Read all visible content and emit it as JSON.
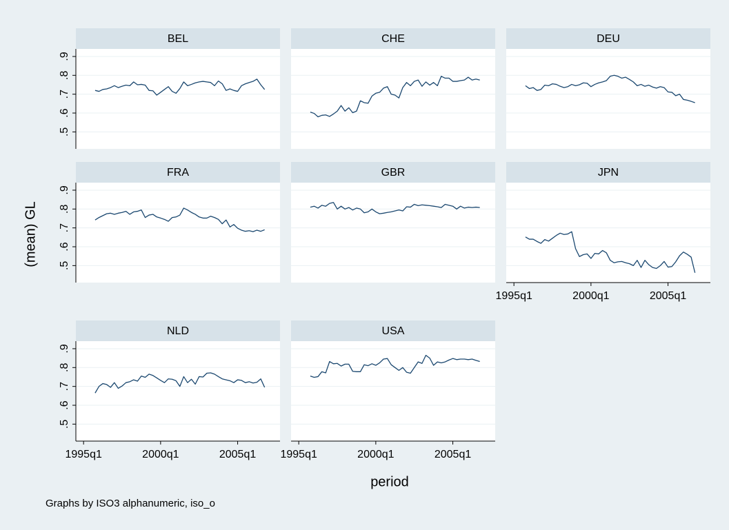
{
  "chart_data": {
    "type": "line",
    "y_label": "(mean) GL",
    "x_label": "period",
    "note": "Graphs by ISO3 alphanumeric, iso_o",
    "x": [
      "1995q4",
      "1996q1",
      "1996q2",
      "1996q3",
      "1996q4",
      "1997q1",
      "1997q2",
      "1997q3",
      "1997q4",
      "1998q1",
      "1998q2",
      "1998q3",
      "1998q4",
      "1999q1",
      "1999q2",
      "1999q3",
      "1999q4",
      "2000q1",
      "2000q2",
      "2000q3",
      "2000q4",
      "2001q1",
      "2001q2",
      "2001q3",
      "2001q4",
      "2002q1",
      "2002q2",
      "2002q3",
      "2002q4",
      "2003q1",
      "2003q2",
      "2003q3",
      "2003q4",
      "2004q1",
      "2004q2",
      "2004q3",
      "2004q4",
      "2005q1",
      "2005q2",
      "2005q3",
      "2005q4",
      "2006q1",
      "2006q2",
      "2006q3",
      "2006q4"
    ],
    "xlim": [
      "1994q3",
      "2007q4"
    ],
    "xticks": [
      "1995q1",
      "2000q1",
      "2005q1"
    ],
    "ylim": [
      0.41,
      0.94
    ],
    "yticks": [
      {
        "value": 0.5,
        "label": ".5"
      },
      {
        "value": 0.6,
        "label": ".6"
      },
      {
        "value": 0.7,
        "label": ".7"
      },
      {
        "value": 0.8,
        "label": ".8"
      },
      {
        "value": 0.9,
        "label": ".9"
      }
    ],
    "grid": true,
    "series": [
      {
        "name": "BEL",
        "color": "#1a476f",
        "values": [
          0.72,
          0.715,
          0.725,
          0.728,
          0.735,
          0.745,
          0.735,
          0.742,
          0.748,
          0.745,
          0.765,
          0.75,
          0.752,
          0.748,
          0.72,
          0.718,
          0.695,
          0.71,
          0.725,
          0.74,
          0.715,
          0.705,
          0.73,
          0.765,
          0.745,
          0.752,
          0.76,
          0.765,
          0.768,
          0.765,
          0.762,
          0.745,
          0.77,
          0.755,
          0.72,
          0.728,
          0.72,
          0.715,
          0.745,
          0.755,
          0.762,
          0.768,
          0.78,
          0.75,
          0.725
        ]
      },
      {
        "name": "CHE",
        "color": "#1a476f",
        "values": [
          0.605,
          0.598,
          0.58,
          0.588,
          0.59,
          0.582,
          0.595,
          0.61,
          0.64,
          0.61,
          0.628,
          0.602,
          0.61,
          0.665,
          0.655,
          0.652,
          0.69,
          0.705,
          0.71,
          0.732,
          0.74,
          0.7,
          0.695,
          0.68,
          0.735,
          0.762,
          0.745,
          0.768,
          0.775,
          0.742,
          0.765,
          0.748,
          0.762,
          0.745,
          0.795,
          0.785,
          0.785,
          0.768,
          0.768,
          0.772,
          0.775,
          0.79,
          0.775,
          0.78,
          0.775
        ]
      },
      {
        "name": "DEU",
        "color": "#1a476f",
        "values": [
          0.745,
          0.73,
          0.735,
          0.72,
          0.725,
          0.748,
          0.745,
          0.755,
          0.752,
          0.742,
          0.735,
          0.74,
          0.752,
          0.745,
          0.75,
          0.76,
          0.758,
          0.74,
          0.752,
          0.76,
          0.765,
          0.772,
          0.795,
          0.8,
          0.795,
          0.785,
          0.79,
          0.778,
          0.765,
          0.745,
          0.752,
          0.742,
          0.748,
          0.738,
          0.732,
          0.74,
          0.735,
          0.712,
          0.71,
          0.692,
          0.7,
          0.672,
          0.668,
          0.662,
          0.655
        ]
      },
      {
        "name": "FRA",
        "color": "#1a476f",
        "values": [
          0.742,
          0.755,
          0.765,
          0.775,
          0.778,
          0.772,
          0.778,
          0.782,
          0.788,
          0.772,
          0.785,
          0.788,
          0.795,
          0.755,
          0.768,
          0.772,
          0.758,
          0.752,
          0.745,
          0.735,
          0.755,
          0.758,
          0.768,
          0.805,
          0.795,
          0.782,
          0.772,
          0.758,
          0.752,
          0.752,
          0.762,
          0.755,
          0.745,
          0.722,
          0.742,
          0.705,
          0.718,
          0.698,
          0.688,
          0.682,
          0.685,
          0.68,
          0.688,
          0.682,
          0.69
        ]
      },
      {
        "name": "GBR",
        "color": "#1a476f",
        "values": [
          0.81,
          0.815,
          0.805,
          0.82,
          0.815,
          0.83,
          0.835,
          0.8,
          0.815,
          0.8,
          0.808,
          0.795,
          0.805,
          0.8,
          0.78,
          0.785,
          0.8,
          0.785,
          0.775,
          0.778,
          0.782,
          0.785,
          0.79,
          0.795,
          0.79,
          0.812,
          0.81,
          0.825,
          0.818,
          0.822,
          0.82,
          0.818,
          0.815,
          0.812,
          0.808,
          0.825,
          0.82,
          0.815,
          0.8,
          0.815,
          0.805,
          0.81,
          0.808,
          0.81,
          0.808
        ]
      },
      {
        "name": "JPN",
        "color": "#1a476f",
        "values": [
          0.652,
          0.64,
          0.64,
          0.628,
          0.618,
          0.638,
          0.63,
          0.645,
          0.66,
          0.672,
          0.665,
          0.668,
          0.68,
          0.59,
          0.548,
          0.558,
          0.562,
          0.538,
          0.565,
          0.562,
          0.58,
          0.568,
          0.528,
          0.515,
          0.52,
          0.522,
          0.515,
          0.51,
          0.5,
          0.528,
          0.49,
          0.528,
          0.505,
          0.49,
          0.485,
          0.5,
          0.522,
          0.492,
          0.495,
          0.52,
          0.552,
          0.572,
          0.56,
          0.545,
          0.462
        ]
      },
      {
        "name": "NLD",
        "color": "#1a476f",
        "values": [
          0.665,
          0.7,
          0.715,
          0.71,
          0.695,
          0.72,
          0.69,
          0.702,
          0.72,
          0.725,
          0.735,
          0.728,
          0.755,
          0.748,
          0.765,
          0.758,
          0.745,
          0.732,
          0.72,
          0.74,
          0.738,
          0.73,
          0.7,
          0.752,
          0.72,
          0.738,
          0.712,
          0.752,
          0.75,
          0.77,
          0.772,
          0.765,
          0.752,
          0.74,
          0.735,
          0.73,
          0.72,
          0.735,
          0.732,
          0.72,
          0.725,
          0.718,
          0.722,
          0.74,
          0.695
        ]
      },
      {
        "name": "USA",
        "color": "#1a476f",
        "values": [
          0.755,
          0.748,
          0.752,
          0.778,
          0.772,
          0.832,
          0.82,
          0.822,
          0.808,
          0.818,
          0.818,
          0.78,
          0.778,
          0.778,
          0.815,
          0.81,
          0.82,
          0.812,
          0.825,
          0.845,
          0.848,
          0.815,
          0.8,
          0.785,
          0.8,
          0.775,
          0.77,
          0.8,
          0.83,
          0.822,
          0.865,
          0.85,
          0.812,
          0.83,
          0.825,
          0.83,
          0.84,
          0.848,
          0.842,
          0.845,
          0.845,
          0.842,
          0.845,
          0.838,
          0.832
        ]
      }
    ]
  }
}
